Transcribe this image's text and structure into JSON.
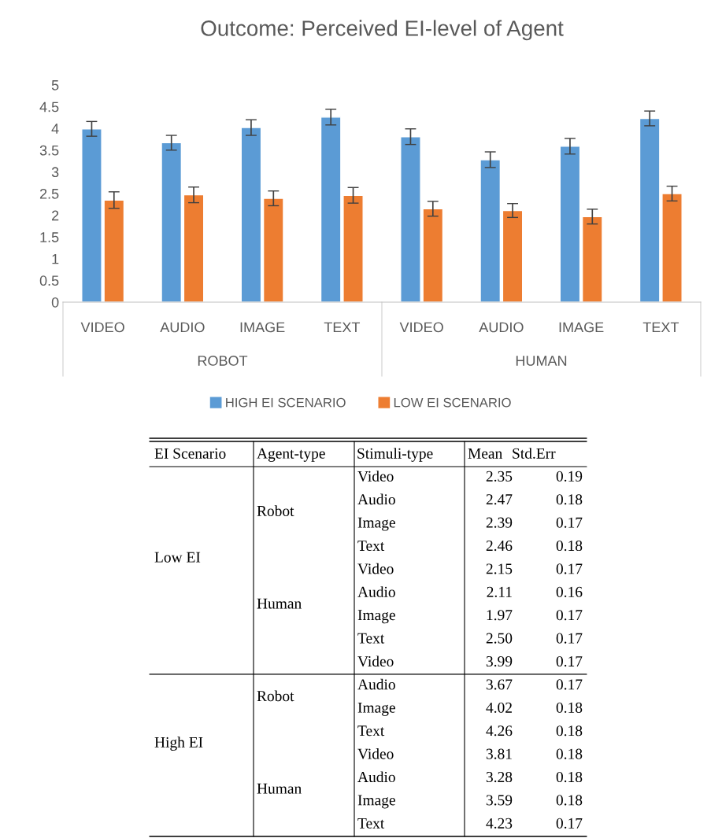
{
  "chart_data": [
    {
      "type": "bar",
      "title": "Outcome: Perceived EI-level of Agent",
      "categories": [
        "VIDEO",
        "AUDIO",
        "IMAGE",
        "TEXT",
        "VIDEO",
        "AUDIO",
        "IMAGE",
        "TEXT"
      ],
      "series": [
        {
          "name": "HIGH EI SCENARIO",
          "color": "#5b9bd5",
          "values": [
            3.99,
            3.67,
            4.02,
            4.26,
            3.81,
            3.28,
            3.59,
            4.23
          ],
          "errors": [
            0.17,
            0.17,
            0.18,
            0.18,
            0.18,
            0.18,
            0.18,
            0.17
          ]
        },
        {
          "name": "LOW EI SCENARIO",
          "color": "#ed7d31",
          "values": [
            2.35,
            2.47,
            2.39,
            2.46,
            2.15,
            2.11,
            1.97,
            2.5
          ],
          "errors": [
            0.19,
            0.18,
            0.17,
            0.18,
            0.17,
            0.16,
            0.17,
            0.17
          ]
        }
      ],
      "ylim": [
        0,
        5
      ],
      "yticks": [
        0,
        0.5,
        1,
        1.5,
        2,
        2.5,
        3,
        3.5,
        4,
        4.5,
        5
      ],
      "grid": false,
      "legend": "bottom",
      "annotations": [
        "ROBOT",
        "HUMAN"
      ]
    },
    {
      "type": "other",
      "annotations": [
        "EI Scenario",
        "Agent-type",
        "Stimuli-type",
        "Mean",
        "Std.Err",
        "Low EI",
        "High EI",
        "Robot",
        "Human",
        "Robot",
        "Human",
        "Video",
        "2.35",
        "0.19",
        "Audio",
        "2.47",
        "0.18",
        "Image",
        "2.39",
        "0.17",
        "Text",
        "2.46",
        "0.18",
        "Video",
        "2.15",
        "0.17",
        "Audio",
        "2.11",
        "0.16",
        "Image",
        "1.97",
        "0.17",
        "Text",
        "2.50",
        "0.17",
        "Video",
        "3.99",
        "0.17",
        "Audio",
        "3.67",
        "0.17",
        "Image",
        "4.02",
        "0.18",
        "Text",
        "4.26",
        "0.18",
        "Video",
        "3.81",
        "0.18",
        "Audio",
        "3.28",
        "0.18",
        "Image",
        "3.59",
        "0.18",
        "Text",
        "4.23",
        "0.17"
      ]
    }
  ]
}
